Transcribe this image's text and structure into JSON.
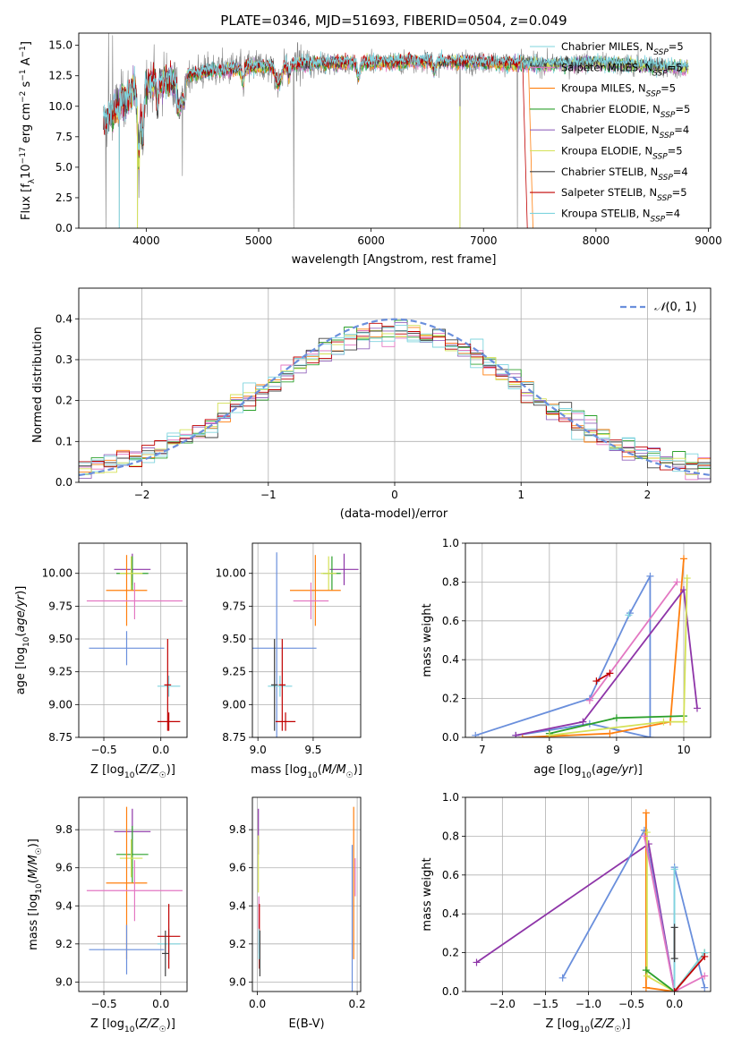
{
  "figure": {
    "title": "PLATE=0346, MJD=51693, FIBERID=0504, z=0.049",
    "colors": [
      "#7f7f7f",
      "#e377c2",
      "#ff7f0e",
      "#2ca02c",
      "#9467bd",
      "#d4e157",
      "#404040",
      "#c00000",
      "#7fd4de",
      "#6a8fdc",
      "#8e35a8"
    ]
  },
  "chart_data": [
    {
      "type": "line",
      "name": "spectrum",
      "title": "PLATE=0346, MJD=51693, FIBERID=0504, z=0.049",
      "xlabel": "wavelength [Angstrom, rest frame]",
      "ylabel": "Flux [f_λ10^-17 erg cm^-2 s^-1 A^-1]",
      "xlim": [
        3400,
        9020
      ],
      "ylim": [
        0,
        16
      ],
      "xticks": [
        4000,
        5000,
        6000,
        7000,
        8000,
        9000
      ],
      "yticks": [
        0.0,
        2.5,
        5.0,
        7.5,
        10.0,
        12.5,
        15.0
      ],
      "legend": [
        {
          "label": "Chabrier MILES, N_SSP=5",
          "color": "#7fd4de"
        },
        {
          "label": "Salpeter MILES, N_SSP=5",
          "color": "#e377c2"
        },
        {
          "label": "Kroupa MILES, N_SSP=5",
          "color": "#ff7f0e"
        },
        {
          "label": "Chabrier ELODIE, N_SSP=5",
          "color": "#2ca02c"
        },
        {
          "label": "Salpeter ELODIE, N_SSP=4",
          "color": "#9467bd"
        },
        {
          "label": "Kroupa ELODIE, N_SSP=5",
          "color": "#d4e157"
        },
        {
          "label": "Chabrier STELIB, N_SSP=4",
          "color": "#404040"
        },
        {
          "label": "Salpeter STELIB, N_SSP=5",
          "color": "#c00000"
        },
        {
          "label": "Kroupa STELIB, N_SSP=4",
          "color": "#7fd4de"
        }
      ],
      "legend_position": "upper right",
      "grid": false,
      "data_series": {
        "name": "observed flux",
        "color": "#7f7f7f",
        "x_range": [
          3620,
          8820
        ]
      },
      "continuum_knots": {
        "x": [
          3620,
          3700,
          3800,
          3900,
          4000,
          4100,
          4300,
          4500,
          5000,
          5500,
          6000,
          6500,
          7000,
          7300,
          7500,
          8000,
          8500,
          8820
        ],
        "y": [
          8.5,
          9.5,
          10.5,
          11.5,
          11.8,
          12.0,
          12.4,
          12.8,
          13.3,
          13.5,
          13.6,
          13.7,
          13.6,
          13.5,
          13.4,
          13.6,
          13.3,
          13.1
        ]
      },
      "model_end": {
        "Kroupa MILES": 7400,
        "Salpeter STELIB": 7350
      }
    },
    {
      "type": "line",
      "name": "residuals",
      "xlabel": "(data-model)/error",
      "ylabel": "Normed distribution",
      "xlim": [
        -2.5,
        2.5
      ],
      "ylim": [
        0,
        0.475
      ],
      "xticks": [
        -2,
        -1,
        0,
        1,
        2
      ],
      "yticks": [
        0.0,
        0.1,
        0.2,
        0.3,
        0.4
      ],
      "grid": true,
      "legend": [
        {
          "label": "N(0,1)",
          "color": "#6a8fdc",
          "style": "dashed"
        }
      ],
      "legend_position": "upper right",
      "histogram_bin_width": 0.1
    },
    {
      "type": "scatter",
      "name": "age-vs-metallicity",
      "xlabel": "Z [log10(Z/Z☉)]",
      "ylabel": "age  [log10(age/yr)]",
      "xlim": [
        -0.72,
        0.23
      ],
      "ylim": [
        8.75,
        10.23
      ],
      "xticks": [
        -0.5,
        0.0
      ],
      "yticks": [
        8.75,
        9.0,
        9.25,
        9.5,
        9.75,
        10.0
      ],
      "grid": true,
      "points": [
        {
          "x": -0.25,
          "y": 10.03,
          "xerr": 0.16,
          "yerr": 0.12,
          "color": "#8e35a8"
        },
        {
          "x": -0.25,
          "y": 10.0,
          "xerr": 0.14,
          "yerr": 0.13,
          "color": "#2ca02c"
        },
        {
          "x": -0.26,
          "y": 10.0,
          "xerr": 0.1,
          "yerr": 0.13,
          "color": "#d4e157"
        },
        {
          "x": -0.3,
          "y": 9.87,
          "xerr": 0.18,
          "yerr": 0.27,
          "color": "#ff7f0e"
        },
        {
          "x": -0.23,
          "y": 9.79,
          "xerr": 0.42,
          "yerr": 0.14,
          "color": "#e377c2"
        },
        {
          "x": -0.3,
          "y": 9.43,
          "xerr": 0.33,
          "yerr": 0.13,
          "color": "#6a8fdc"
        },
        {
          "x": 0.07,
          "y": 9.14,
          "xerr": 0.1,
          "yerr": 0.08,
          "color": "#7fd4de"
        },
        {
          "x": 0.06,
          "y": 9.15,
          "xerr": 0.03,
          "yerr": 0.35,
          "color": "#c00000"
        },
        {
          "x": 0.07,
          "y": 8.87,
          "xerr": 0.1,
          "yerr": 0.07,
          "color": "#c00000"
        }
      ]
    },
    {
      "type": "scatter",
      "name": "age-vs-mass",
      "xlabel": "mass [log10(M/M☉)]",
      "ylabel": "",
      "xlim": [
        8.95,
        9.93
      ],
      "ylim": [
        8.75,
        10.23
      ],
      "xticks": [
        9.0,
        9.5
      ],
      "yticks": [
        8.75,
        9.0,
        9.25,
        9.5,
        9.75,
        10.0
      ],
      "grid": true,
      "points": [
        {
          "x": 9.78,
          "y": 10.03,
          "xerr": 0.13,
          "yerr": 0.12,
          "color": "#8e35a8"
        },
        {
          "x": 9.67,
          "y": 10.0,
          "xerr": 0.08,
          "yerr": 0.13,
          "color": "#2ca02c"
        },
        {
          "x": 9.64,
          "y": 10.0,
          "xerr": 0.07,
          "yerr": 0.13,
          "color": "#d4e157"
        },
        {
          "x": 9.52,
          "y": 9.87,
          "xerr": 0.23,
          "yerr": 0.27,
          "color": "#ff7f0e"
        },
        {
          "x": 9.48,
          "y": 9.79,
          "xerr": 0.16,
          "yerr": 0.14,
          "color": "#e377c2"
        },
        {
          "x": 9.17,
          "y": 9.43,
          "xerr": 0.36,
          "yerr": 0.73,
          "color": "#6a8fdc"
        },
        {
          "x": 9.2,
          "y": 9.14,
          "xerr": 0.11,
          "yerr": 0.08,
          "color": "#7fd4de"
        },
        {
          "x": 9.22,
          "y": 9.15,
          "xerr": 0.03,
          "yerr": 0.35,
          "color": "#c00000"
        },
        {
          "x": 9.25,
          "y": 8.87,
          "xerr": 0.09,
          "yerr": 0.07,
          "color": "#c00000"
        },
        {
          "x": 9.15,
          "y": 9.15,
          "xerr": 0.03,
          "yerr": 0.35,
          "color": "#404040"
        }
      ]
    },
    {
      "type": "line",
      "name": "mass-weight-vs-age",
      "xlabel": "age  [log10(age/yr)]",
      "ylabel": "mass weight",
      "xlim": [
        6.75,
        10.4
      ],
      "ylim": [
        0,
        1.0
      ],
      "xticks": [
        7,
        8,
        9,
        10
      ],
      "yticks": [
        0.0,
        0.2,
        0.4,
        0.6,
        0.8,
        1.0
      ],
      "grid": true,
      "series": [
        {
          "color": "#6a8fdc",
          "x": [
            6.9,
            8.6,
            9.2,
            9.5,
            9.5,
            8.6,
            7.5
          ],
          "y": [
            0.01,
            0.2,
            0.64,
            0.83,
            0.0,
            0.07,
            0.01
          ]
        },
        {
          "color": "#ff7f0e",
          "x": [
            7.6,
            8.9,
            9.8,
            10.0
          ],
          "y": [
            0.0,
            0.02,
            0.08,
            0.92
          ]
        },
        {
          "color": "#e377c2",
          "x": [
            8.6,
            9.9
          ],
          "y": [
            0.19,
            0.8
          ]
        },
        {
          "color": "#8e35a8",
          "x": [
            7.5,
            8.5,
            10.0,
            10.2
          ],
          "y": [
            0.01,
            0.08,
            0.76,
            0.15
          ]
        },
        {
          "color": "#2ca02c",
          "x": [
            8.0,
            9.0,
            10.0
          ],
          "y": [
            0.02,
            0.1,
            0.11
          ]
        },
        {
          "color": "#d4e157",
          "x": [
            8.0,
            9.7,
            10.0,
            10.05
          ],
          "y": [
            0.01,
            0.08,
            0.08,
            0.82
          ]
        },
        {
          "color": "#c00000",
          "x": [
            8.7,
            8.9
          ],
          "y": [
            0.29,
            0.33
          ]
        },
        {
          "color": "#7fd4de",
          "x": [
            9.18
          ],
          "y": [
            0.63
          ]
        }
      ]
    },
    {
      "type": "scatter",
      "name": "mass-vs-metallicity",
      "xlabel": "Z [log10(Z/Z☉)]",
      "ylabel": "mass [log10(M/M☉)]",
      "xlim": [
        -0.72,
        0.23
      ],
      "ylim": [
        8.95,
        9.97
      ],
      "xticks": [
        -0.5,
        0.0
      ],
      "yticks": [
        9.0,
        9.2,
        9.4,
        9.6,
        9.8
      ],
      "grid": true,
      "points": [
        {
          "x": -0.25,
          "y": 9.79,
          "xerr": 0.16,
          "yerr": 0.12,
          "color": "#8e35a8"
        },
        {
          "x": -0.25,
          "y": 9.67,
          "xerr": 0.14,
          "yerr": 0.15,
          "color": "#2ca02c"
        },
        {
          "x": -0.26,
          "y": 9.65,
          "xerr": 0.1,
          "yerr": 0.1,
          "color": "#d4e157"
        },
        {
          "x": -0.3,
          "y": 9.52,
          "xerr": 0.18,
          "yerr": 0.4,
          "color": "#ff7f0e"
        },
        {
          "x": -0.23,
          "y": 9.48,
          "xerr": 0.42,
          "yerr": 0.16,
          "color": "#e377c2"
        },
        {
          "x": -0.3,
          "y": 9.17,
          "xerr": 0.33,
          "yerr": 0.13,
          "color": "#6a8fdc"
        },
        {
          "x": 0.07,
          "y": 9.2,
          "xerr": 0.1,
          "yerr": 0.08,
          "color": "#7fd4de"
        },
        {
          "x": 0.07,
          "y": 9.24,
          "xerr": 0.1,
          "yerr": 0.17,
          "color": "#c00000"
        },
        {
          "x": 0.04,
          "y": 9.15,
          "xerr": 0.03,
          "yerr": 0.12,
          "color": "#404040"
        }
      ]
    },
    {
      "type": "scatter",
      "name": "mass-vs-extinction",
      "xlabel": "E(B-V)",
      "ylabel": "",
      "xlim": [
        -0.01,
        0.207
      ],
      "ylim": [
        8.95,
        9.97
      ],
      "xticks": [
        0.0,
        0.2
      ],
      "yticks": [
        9.0,
        9.2,
        9.4,
        9.6,
        9.8
      ],
      "grid": true,
      "points": [
        {
          "x": 0.002,
          "y": 9.79,
          "yerr": 0.12,
          "color": "#8e35a8"
        },
        {
          "x": 0.002,
          "y": 9.62,
          "yerr": 0.15,
          "color": "#d4e157"
        },
        {
          "x": 0.003,
          "y": 9.3,
          "yerr": 0.15,
          "color": "#e377c2"
        },
        {
          "x": 0.004,
          "y": 9.24,
          "yerr": 0.17,
          "color": "#c00000"
        },
        {
          "x": 0.005,
          "y": 9.15,
          "yerr": 0.12,
          "color": "#404040"
        },
        {
          "x": 0.003,
          "y": 9.2,
          "yerr": 0.08,
          "color": "#7fd4de"
        },
        {
          "x": 0.196,
          "y": 9.55,
          "yerr": 0.1,
          "color": "#e377c2"
        },
        {
          "x": 0.193,
          "y": 9.52,
          "yerr": 0.4,
          "color": "#ff7f0e"
        },
        {
          "x": 0.19,
          "y": 9.17,
          "yerr": 0.55,
          "color": "#6a8fdc"
        }
      ]
    },
    {
      "type": "line",
      "name": "mass-weight-vs-metallicity",
      "xlabel": "Z [log10(Z/Z☉)]",
      "ylabel": "mass weight",
      "xlim": [
        -2.43,
        0.42
      ],
      "ylim": [
        0,
        1.0
      ],
      "xticks": [
        -2.0,
        -1.5,
        -1.0,
        -0.5,
        0.0
      ],
      "yticks": [
        0.0,
        0.2,
        0.4,
        0.6,
        0.8,
        1.0
      ],
      "grid": true,
      "series": [
        {
          "color": "#8e35a8",
          "x": [
            -2.3,
            -0.3,
            0.0
          ],
          "y": [
            0.15,
            0.76,
            0.0
          ]
        },
        {
          "color": "#6a8fdc",
          "x": [
            -1.3,
            -0.35,
            0.0,
            0.0,
            0.35
          ],
          "y": [
            0.07,
            0.83,
            0.0,
            0.64,
            0.02
          ]
        },
        {
          "color": "#ff7f0e",
          "x": [
            -0.33,
            -0.33,
            0.0
          ],
          "y": [
            0.92,
            0.02,
            0.0
          ]
        },
        {
          "color": "#d4e157",
          "x": [
            -0.32,
            -0.32,
            0.0
          ],
          "y": [
            0.82,
            0.08,
            0.0
          ]
        },
        {
          "color": "#2ca02c",
          "x": [
            -0.33,
            0.0,
            0.35
          ],
          "y": [
            0.11,
            0.0,
            0.2
          ]
        },
        {
          "color": "#e377c2",
          "x": [
            -0.35,
            0.0,
            0.35
          ],
          "y": [
            0.8,
            0.0,
            0.08
          ]
        },
        {
          "color": "#7fd4de",
          "x": [
            0.0,
            0.0,
            0.35
          ],
          "y": [
            0.63,
            0.0,
            0.2
          ]
        },
        {
          "color": "#c00000",
          "x": [
            0.0,
            0.35
          ],
          "y": [
            0.0,
            0.18
          ]
        },
        {
          "color": "#404040",
          "x": [
            0.0,
            0.0
          ],
          "y": [
            0.33,
            0.17
          ]
        }
      ]
    }
  ]
}
